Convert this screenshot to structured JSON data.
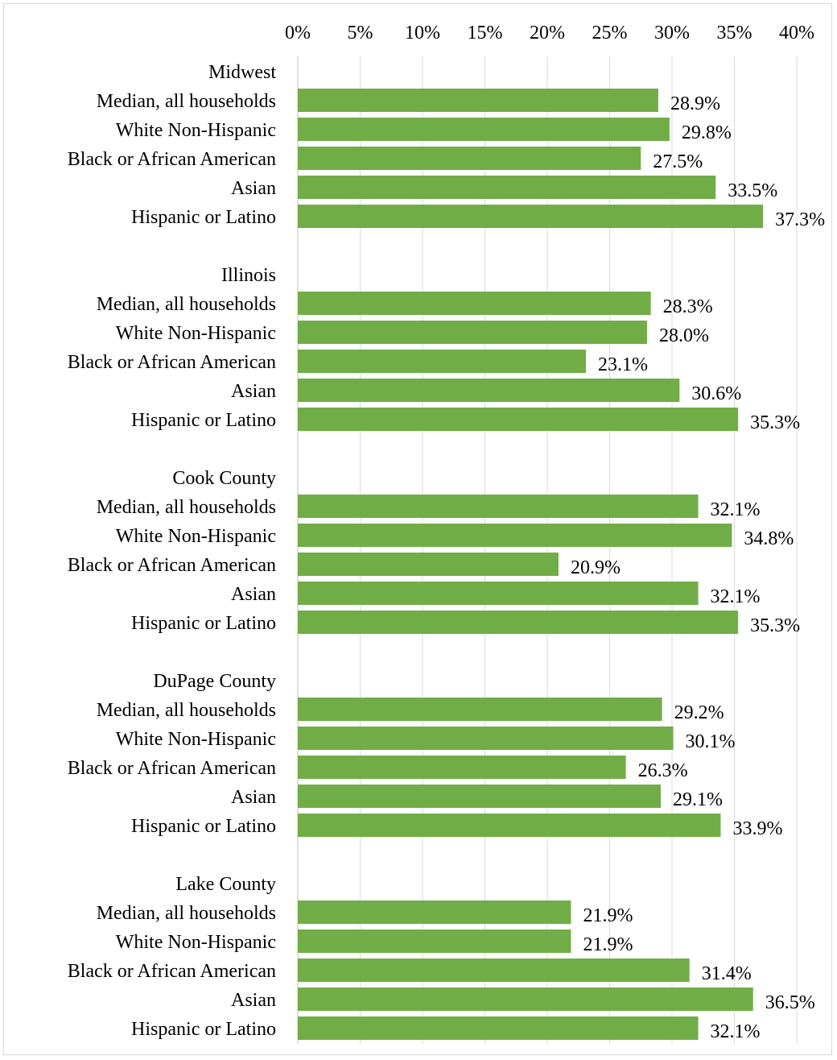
{
  "chart_data": {
    "type": "bar",
    "orientation": "horizontal",
    "title": "",
    "xlabel": "",
    "ylabel": "",
    "xlim": [
      0,
      40
    ],
    "x_ticks": [
      "0%",
      "5%",
      "10%",
      "15%",
      "20%",
      "25%",
      "30%",
      "35%",
      "40%"
    ],
    "x_axis_position": "top",
    "grid": true,
    "legend": "none",
    "bar_color": "#70ad47",
    "grid_color": "#d9d9d9",
    "groups": [
      {
        "name": "Midwest",
        "categories": [
          "Median, all households",
          "White Non-Hispanic",
          "Black or African American",
          "Asian",
          "Hispanic or Latino"
        ],
        "values": [
          28.9,
          29.8,
          27.5,
          33.5,
          37.3
        ],
        "labels": [
          "28.9%",
          "29.8%",
          "27.5%",
          "33.5%",
          "37.3%"
        ]
      },
      {
        "name": "Illinois",
        "categories": [
          "Median, all households",
          "White Non-Hispanic",
          "Black or African American",
          "Asian",
          "Hispanic or Latino"
        ],
        "values": [
          28.3,
          28.0,
          23.1,
          30.6,
          35.3
        ],
        "labels": [
          "28.3%",
          "28.0%",
          "23.1%",
          "30.6%",
          "35.3%"
        ]
      },
      {
        "name": "Cook County",
        "categories": [
          "Median, all households",
          "White Non-Hispanic",
          "Black or African American",
          "Asian",
          "Hispanic or Latino"
        ],
        "values": [
          32.1,
          34.8,
          20.9,
          32.1,
          35.3
        ],
        "labels": [
          "32.1%",
          "34.8%",
          "20.9%",
          "32.1%",
          "35.3%"
        ]
      },
      {
        "name": "DuPage County",
        "categories": [
          "Median, all households",
          "White Non-Hispanic",
          "Black or African American",
          "Asian",
          "Hispanic or Latino"
        ],
        "values": [
          29.2,
          30.1,
          26.3,
          29.1,
          33.9
        ],
        "labels": [
          "29.2%",
          "30.1%",
          "26.3%",
          "29.1%",
          "33.9%"
        ]
      },
      {
        "name": "Lake County",
        "categories": [
          "Median, all households",
          "White Non-Hispanic",
          "Black or African American",
          "Asian",
          "Hispanic or Latino"
        ],
        "values": [
          21.9,
          21.9,
          31.4,
          36.5,
          32.1
        ],
        "labels": [
          "21.9%",
          "21.9%",
          "31.4%",
          "36.5%",
          "32.1%"
        ]
      }
    ]
  }
}
